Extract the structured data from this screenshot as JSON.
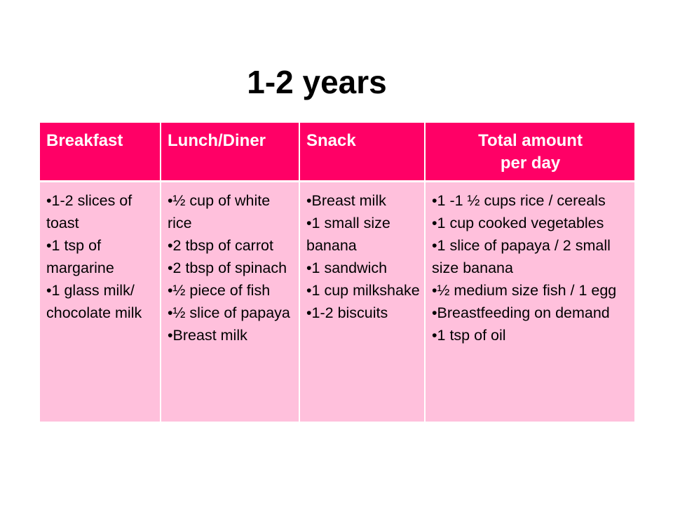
{
  "title": "1-2 years",
  "table": {
    "headers": {
      "breakfast": "Breakfast",
      "lunch": "Lunch/Diner",
      "snack": "Snack",
      "total_line1": "Total amount",
      "total_line2": "per day"
    },
    "breakfast": [
      "•1-2 slices of toast",
      "•1 tsp of margarine",
      "•1 glass milk/ chocolate milk"
    ],
    "lunch": [
      "•½ cup of white rice",
      "•2 tbsp of carrot",
      "•2 tbsp of spinach",
      "•½ piece of fish",
      "•½ slice of papaya",
      "•Breast milk"
    ],
    "snack": [
      "•Breast milk",
      "•1 small size banana",
      "•1 sandwich",
      "•1 cup milkshake",
      "•1-2 biscuits"
    ],
    "total": [
      "•1 -1 ½ cups rice / cereals",
      "•1 cup cooked vegetables",
      "•1 slice of papaya / 2 small size banana",
      "•½ medium size fish / 1 egg",
      "•Breastfeeding on demand",
      "•1 tsp of oil"
    ]
  },
  "colors": {
    "header_bg": "#ff0066",
    "body_bg": "#ffc0dc"
  }
}
